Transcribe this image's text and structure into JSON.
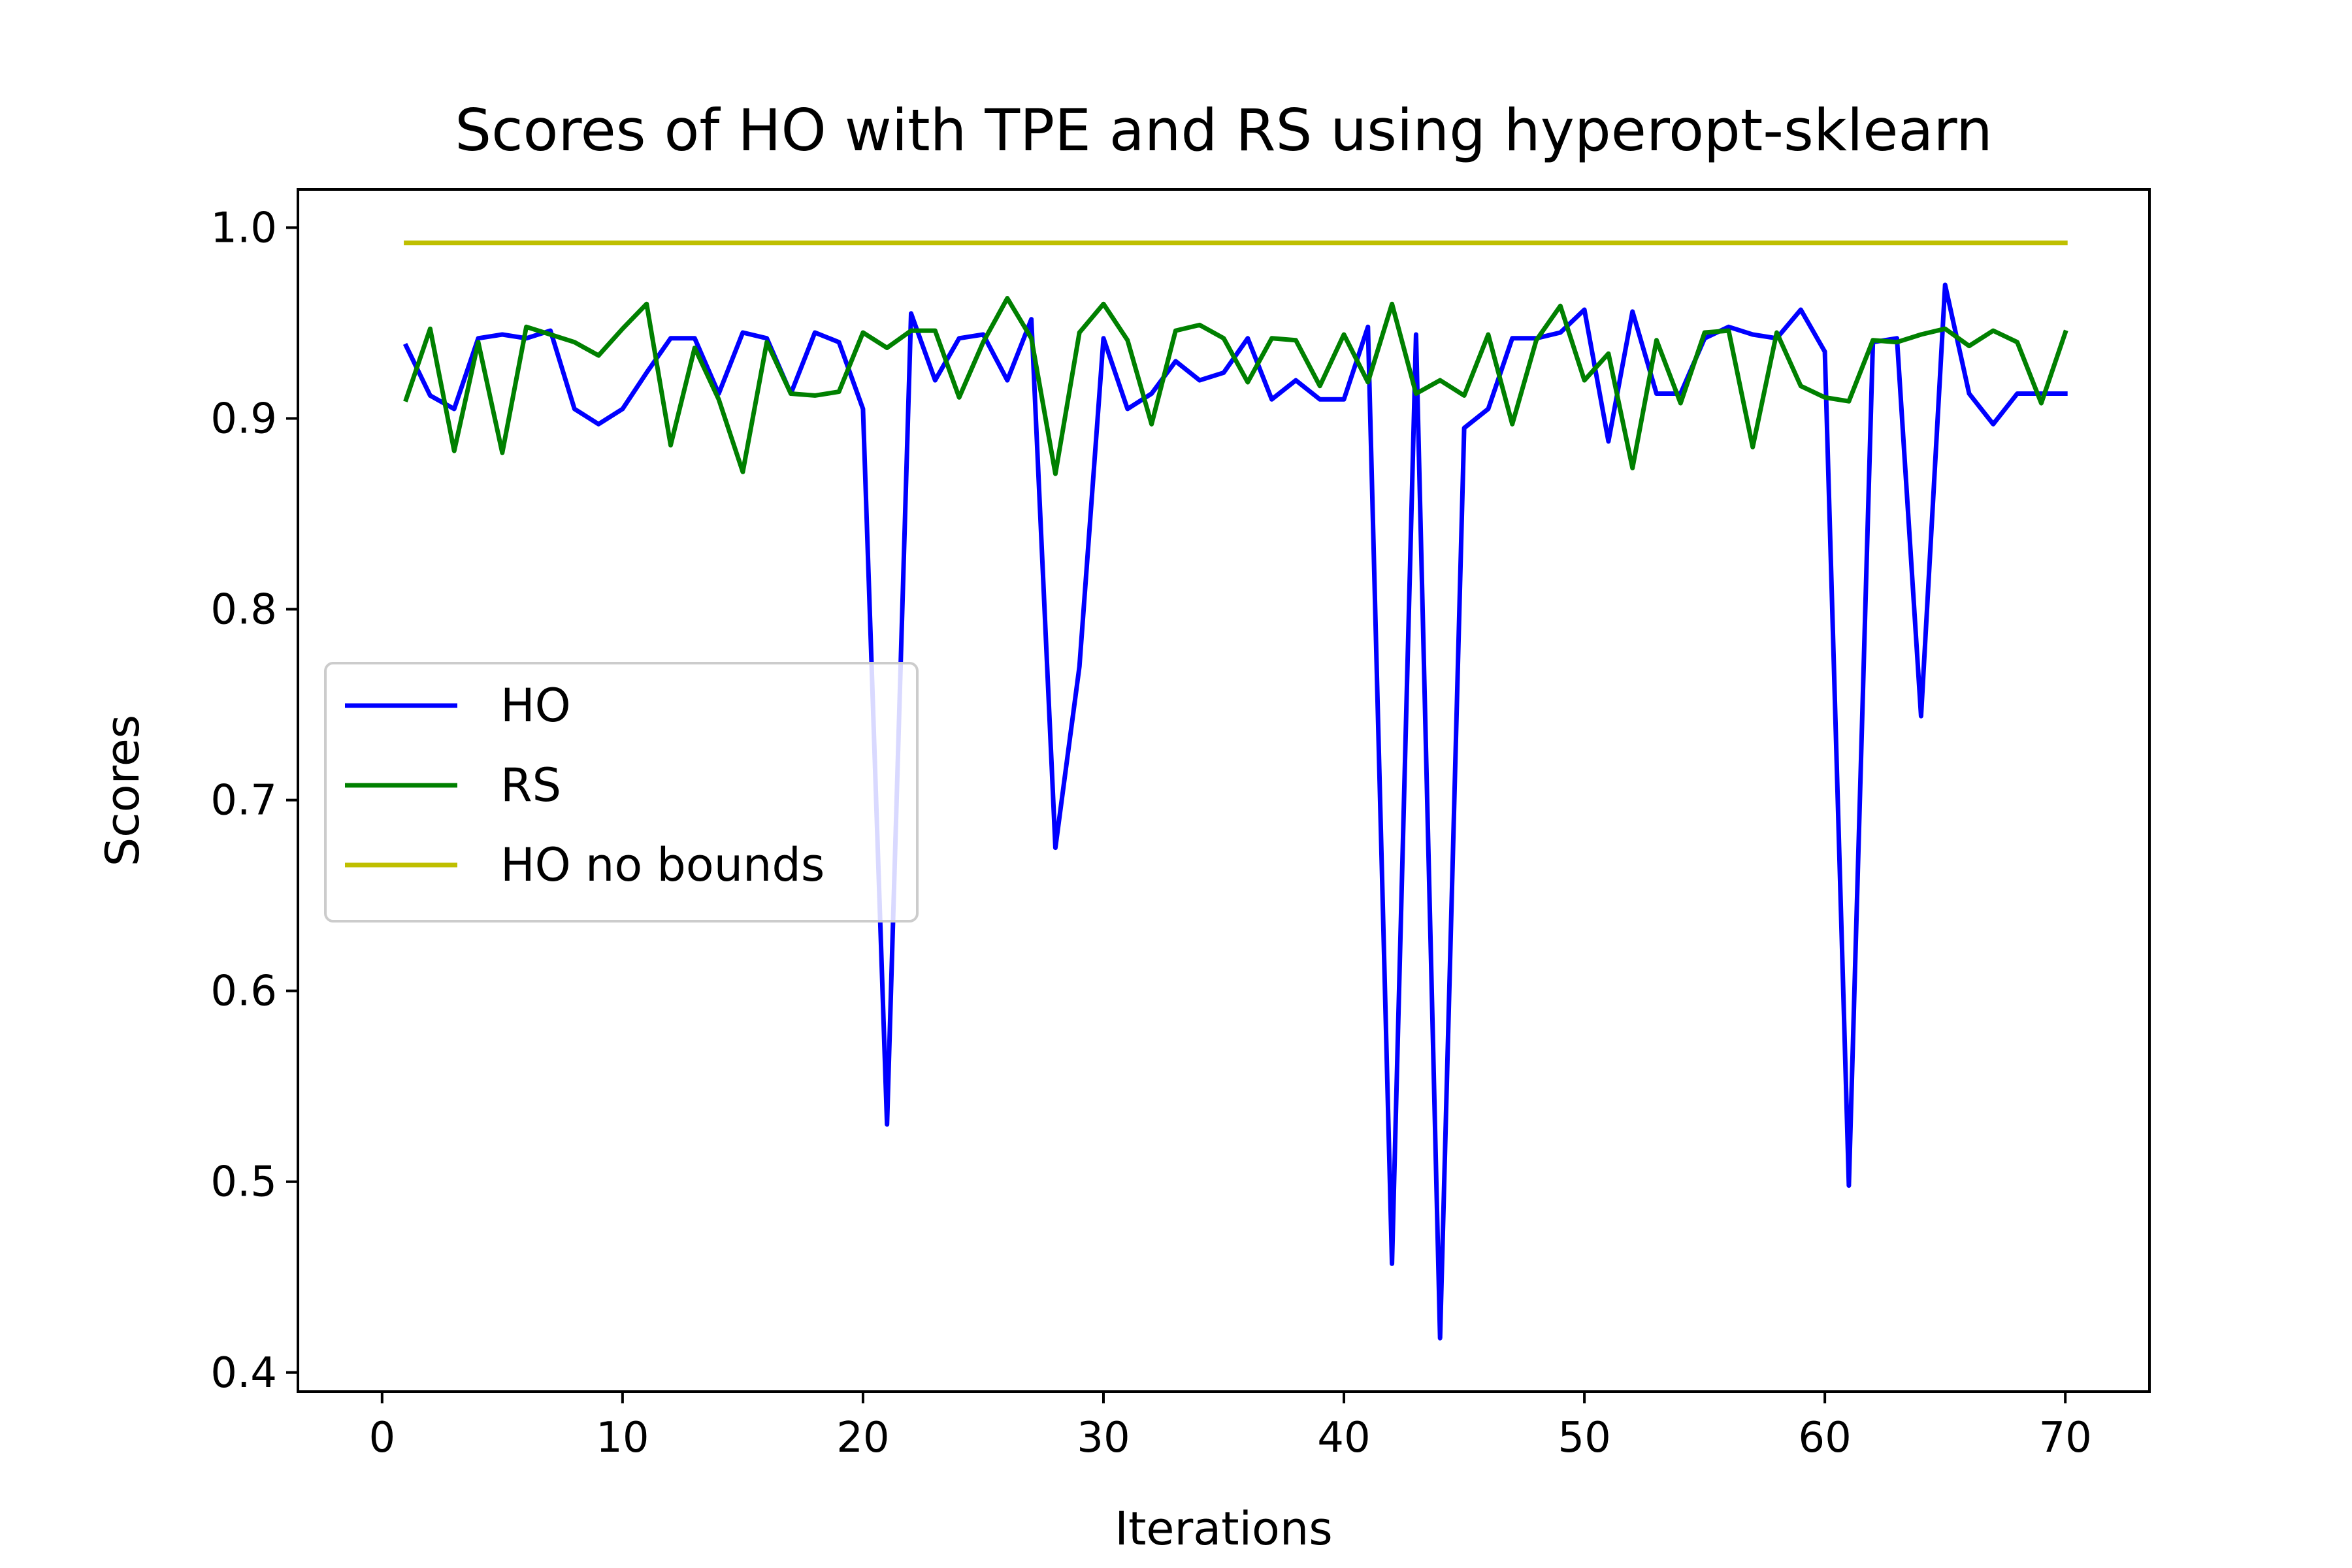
{
  "chart_data": {
    "type": "line",
    "title": "Scores of HO with TPE and RS using hyperopt-sklearn",
    "xlabel": "Iterations",
    "ylabel": "Scores",
    "xlim": [
      -3.5,
      73.5
    ],
    "ylim": [
      0.39,
      1.02
    ],
    "xticks": [
      0,
      10,
      20,
      30,
      40,
      50,
      60,
      70
    ],
    "xtick_labels": [
      "0",
      "10",
      "20",
      "30",
      "40",
      "50",
      "60",
      "70"
    ],
    "yticks": [
      0.4,
      0.5,
      0.6,
      0.7,
      0.8,
      0.9,
      1.0
    ],
    "ytick_labels": [
      "0.4",
      "0.5",
      "0.6",
      "0.7",
      "0.8",
      "0.9",
      "1.0"
    ],
    "grid": false,
    "legend_position": "center-left",
    "x": [
      1,
      2,
      3,
      4,
      5,
      6,
      7,
      8,
      9,
      10,
      11,
      12,
      13,
      14,
      15,
      16,
      17,
      18,
      19,
      20,
      21,
      22,
      23,
      24,
      25,
      26,
      27,
      28,
      29,
      30,
      31,
      32,
      33,
      34,
      35,
      36,
      37,
      38,
      39,
      40,
      41,
      42,
      43,
      44,
      45,
      46,
      47,
      48,
      49,
      50,
      51,
      52,
      53,
      54,
      55,
      56,
      57,
      58,
      59,
      60,
      61,
      62,
      63,
      64,
      65,
      66,
      67,
      68,
      69,
      70
    ],
    "series": [
      {
        "name": "HO",
        "color": "#0000ff",
        "values": [
          0.938,
          0.912,
          0.905,
          0.942,
          0.944,
          0.942,
          0.946,
          0.905,
          0.897,
          0.905,
          0.924,
          0.942,
          0.942,
          0.913,
          0.945,
          0.942,
          0.913,
          0.945,
          0.94,
          0.905,
          0.53,
          0.955,
          0.92,
          0.942,
          0.944,
          0.92,
          0.952,
          0.675,
          0.77,
          0.942,
          0.905,
          0.913,
          0.93,
          0.92,
          0.924,
          0.942,
          0.91,
          0.92,
          0.91,
          0.91,
          0.948,
          0.457,
          0.944,
          0.418,
          0.895,
          0.905,
          0.942,
          0.942,
          0.945,
          0.957,
          0.888,
          0.956,
          0.913,
          0.913,
          0.942,
          0.948,
          0.944,
          0.942,
          0.957,
          0.935,
          0.498,
          0.94,
          0.942,
          0.744,
          0.97,
          0.913,
          0.897,
          0.913,
          0.913,
          0.913
        ]
      },
      {
        "name": "RS",
        "color": "#008000",
        "values": [
          0.91,
          0.947,
          0.883,
          0.94,
          0.882,
          0.948,
          0.944,
          0.94,
          0.933,
          0.947,
          0.96,
          0.886,
          0.937,
          0.91,
          0.872,
          0.94,
          0.913,
          0.912,
          0.914,
          0.945,
          0.937,
          0.946,
          0.946,
          0.911,
          0.94,
          0.963,
          0.942,
          0.871,
          0.945,
          0.96,
          0.941,
          0.897,
          0.946,
          0.949,
          0.942,
          0.919,
          0.942,
          0.941,
          0.917,
          0.944,
          0.919,
          0.96,
          0.913,
          0.92,
          0.912,
          0.944,
          0.897,
          0.941,
          0.959,
          0.92,
          0.934,
          0.874,
          0.941,
          0.908,
          0.945,
          0.946,
          0.885,
          0.945,
          0.917,
          0.911,
          0.909,
          0.941,
          0.94,
          0.944,
          0.947,
          0.938,
          0.946,
          0.94,
          0.908,
          0.945
        ]
      },
      {
        "name": "HO no bounds",
        "color": "#bfbf00",
        "values": [
          0.992,
          0.992,
          0.992,
          0.992,
          0.992,
          0.992,
          0.992,
          0.992,
          0.992,
          0.992,
          0.992,
          0.992,
          0.992,
          0.992,
          0.992,
          0.992,
          0.992,
          0.992,
          0.992,
          0.992,
          0.992,
          0.992,
          0.992,
          0.992,
          0.992,
          0.992,
          0.992,
          0.992,
          0.992,
          0.992,
          0.992,
          0.992,
          0.992,
          0.992,
          0.992,
          0.992,
          0.992,
          0.992,
          0.992,
          0.992,
          0.992,
          0.992,
          0.992,
          0.992,
          0.992,
          0.992,
          0.992,
          0.992,
          0.992,
          0.992,
          0.992,
          0.992,
          0.992,
          0.992,
          0.992,
          0.992,
          0.992,
          0.992,
          0.992,
          0.992,
          0.992,
          0.992,
          0.992,
          0.992,
          0.992,
          0.992,
          0.992,
          0.992,
          0.992,
          0.992
        ]
      }
    ]
  }
}
